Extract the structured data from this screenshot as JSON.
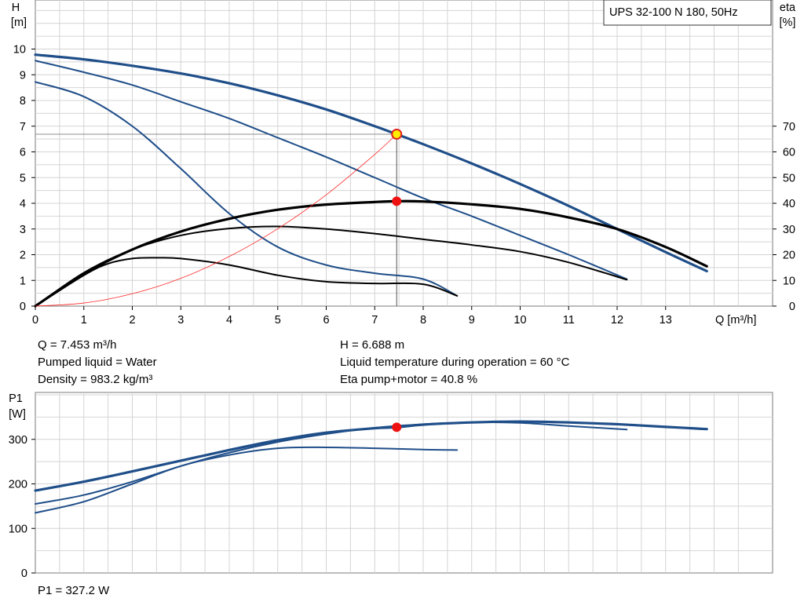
{
  "model_label": "UPS 32-100 N 180, 50Hz",
  "info": {
    "q": "Q = 7.453 m³/h",
    "liquid": "Pumped liquid = Water",
    "density": "Density = 983.2 kg/m³",
    "h": "H = 6.688 m",
    "temperature": "Liquid temperature during operation = 60 °C",
    "eta": "Eta pump+motor = 40.8 %",
    "p1": "P1 = 327.2 W"
  },
  "chart_data": [
    {
      "type": "line",
      "y_label_top": "H",
      "y_label_unit": "[m]",
      "y2_label_top": "eta",
      "y2_label_unit": "[%]",
      "xlabel": "Q [m³/h]",
      "xlim": [
        0,
        14.2
      ],
      "ylim": [
        0,
        11.3
      ],
      "y2lim": [
        0,
        113
      ],
      "x_ticks": [
        0,
        1,
        2,
        3,
        4,
        5,
        6,
        7,
        8,
        9,
        10,
        11,
        12,
        13
      ],
      "y_ticks": [
        0,
        1,
        2,
        3,
        4,
        5,
        6,
        7,
        8,
        9,
        10
      ],
      "y2_ticks": [
        0,
        10,
        20,
        30,
        40,
        50,
        60,
        70
      ],
      "grid": true,
      "series": [
        {
          "color": "#1f4e89",
          "axis": "y",
          "bold": true,
          "x": [
            0,
            1,
            2,
            3,
            4,
            5,
            6,
            7,
            7.453,
            8,
            9,
            10,
            11,
            12,
            13,
            13.85
          ],
          "y": [
            9.78,
            9.6,
            9.35,
            9.05,
            8.67,
            8.2,
            7.65,
            7.0,
            6.688,
            6.3,
            5.55,
            4.75,
            3.9,
            3.0,
            2.1,
            1.36
          ]
        },
        {
          "color": "#1f4e89",
          "axis": "y",
          "x": [
            0,
            1,
            2,
            3,
            4,
            5,
            6,
            7,
            8,
            9,
            10,
            11,
            12.2
          ],
          "y": [
            9.55,
            9.1,
            8.6,
            7.95,
            7.3,
            6.55,
            5.8,
            5.0,
            4.2,
            3.5,
            2.75,
            2.0,
            1.05
          ]
        },
        {
          "color": "#1f4e89",
          "axis": "y",
          "x": [
            0,
            1,
            2,
            3,
            4,
            5,
            6,
            7,
            8,
            8.7
          ],
          "y": [
            8.72,
            8.15,
            7.0,
            5.35,
            3.6,
            2.3,
            1.6,
            1.28,
            1.05,
            0.4
          ]
        },
        {
          "color": "#000000",
          "axis": "y2",
          "bold": true,
          "x": [
            0,
            1,
            2,
            3,
            4,
            5,
            6,
            7,
            7.453,
            8,
            9,
            10,
            11,
            12,
            13,
            13.85
          ],
          "y": [
            0,
            12.5,
            22,
            29,
            34,
            37.5,
            39.5,
            40.5,
            40.8,
            40.7,
            39.6,
            37.8,
            34.5,
            30,
            23,
            15.5
          ]
        },
        {
          "color": "#000000",
          "axis": "y2",
          "x": [
            0,
            1,
            2,
            3,
            4,
            5,
            6,
            7,
            8,
            9,
            10,
            11,
            12.2
          ],
          "y": [
            0,
            13,
            22,
            27.5,
            30.2,
            31,
            30,
            28.2,
            26,
            23.8,
            21.2,
            17,
            10.3
          ]
        },
        {
          "color": "#000000",
          "axis": "y2",
          "x": [
            0,
            1,
            1.5,
            2,
            2.5,
            3,
            4,
            5,
            6,
            7,
            8,
            8.7
          ],
          "y": [
            0,
            12,
            16.5,
            18.5,
            18.8,
            18.5,
            16,
            12,
            9.5,
            8.8,
            8.5,
            4
          ]
        },
        {
          "color": "#ff2a2a",
          "axis": "y",
          "thin": true,
          "x": [
            0,
            1,
            2,
            3,
            4,
            5,
            6,
            7,
            7.453
          ],
          "y": [
            0,
            0.12,
            0.48,
            1.08,
            1.93,
            3.01,
            4.33,
            5.9,
            6.688
          ]
        }
      ],
      "duty_point": {
        "x": 7.453,
        "y": 6.688,
        "eta": 40.8
      }
    },
    {
      "type": "line",
      "y_label_top": "P1",
      "y_label_unit": "[W]",
      "xlim": [
        0,
        14.2
      ],
      "ylim": [
        0,
        400
      ],
      "y_ticks": [
        0,
        100,
        200,
        300
      ],
      "grid": true,
      "series": [
        {
          "color": "#1f4e89",
          "bold": true,
          "x": [
            0,
            1,
            2,
            3,
            4,
            5,
            6,
            7,
            7.453,
            8,
            9,
            10,
            11,
            12,
            13,
            13.85
          ],
          "y": [
            185,
            205,
            228,
            252,
            276,
            298,
            315,
            325,
            327.2,
            333,
            338,
            340,
            338,
            334,
            328,
            323
          ]
        },
        {
          "color": "#1f4e89",
          "x": [
            0,
            1,
            2,
            3,
            4,
            5,
            6,
            7,
            8,
            9,
            10,
            11,
            12.2
          ],
          "y": [
            155,
            175,
            205,
            240,
            270,
            294,
            312,
            326,
            334,
            338,
            337,
            330,
            322
          ]
        },
        {
          "color": "#1f4e89",
          "x": [
            0,
            1,
            2,
            3,
            4,
            5,
            6,
            7,
            8,
            8.7
          ],
          "y": [
            135,
            160,
            200,
            240,
            265,
            280,
            282,
            280,
            277,
            276
          ]
        }
      ],
      "duty_point": {
        "x": 7.453,
        "y": 327.2
      }
    }
  ]
}
